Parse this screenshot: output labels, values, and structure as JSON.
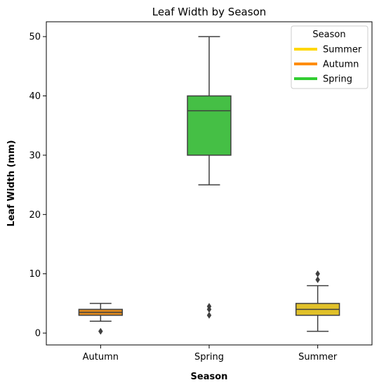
{
  "chart_data": {
    "type": "box",
    "title": "Leaf Width by Season",
    "xlabel": "Season",
    "ylabel": "Leaf Width (mm)",
    "categories": [
      "Autumn",
      "Spring",
      "Summer"
    ],
    "ylim": [
      -2,
      52.5
    ],
    "yticks": [
      0,
      10,
      20,
      30,
      40,
      50
    ],
    "grid": false,
    "legend": {
      "title": "Season",
      "placement": "top-right",
      "entries": [
        {
          "label": "Summer",
          "color": "#FFD700"
        },
        {
          "label": "Autumn",
          "color": "#FF8C00"
        },
        {
          "label": "Spring",
          "color": "#32CD32"
        }
      ]
    },
    "boxes": [
      {
        "category": "Autumn",
        "whisker_low": 2,
        "q1": 3,
        "median": 3.5,
        "q3": 4,
        "whisker_high": 5,
        "outliers": [
          0.3
        ],
        "color": "#E08A1E"
      },
      {
        "category": "Spring",
        "whisker_low": 25,
        "q1": 30,
        "median": 37.5,
        "q3": 40,
        "whisker_high": 50,
        "outliers": [
          3,
          4,
          4.5
        ],
        "color": "#45BF45"
      },
      {
        "category": "Summer",
        "whisker_low": 0.3,
        "q1": 3,
        "median": 4,
        "q3": 5,
        "whisker_high": 8,
        "outliers": [
          9,
          10
        ],
        "color": "#E1C129"
      }
    ]
  }
}
